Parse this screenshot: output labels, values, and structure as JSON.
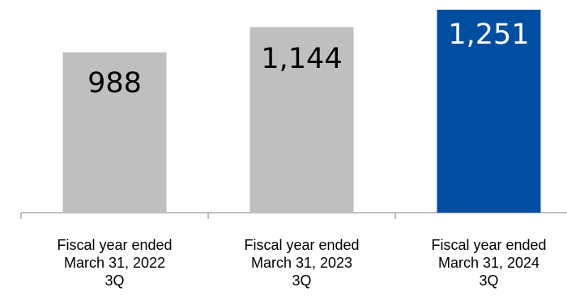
{
  "chart_data": {
    "type": "bar",
    "categories": [
      [
        "Fiscal year ended",
        "March 31, 2022",
        "3Q"
      ],
      [
        "Fiscal year ended",
        "March 31, 2023",
        "3Q"
      ],
      [
        "Fiscal year ended",
        "March 31, 2024",
        "3Q"
      ]
    ],
    "values": [
      988,
      1144,
      1251
    ],
    "value_labels": [
      "988",
      "1,144",
      "1,251"
    ],
    "bar_colors": [
      "#bfbfbf",
      "#bfbfbf",
      "#004ea2"
    ],
    "value_label_colors": [
      "#000000",
      "#000000",
      "#ffffff"
    ],
    "ylim": [
      0,
      1251
    ],
    "grid": false
  }
}
